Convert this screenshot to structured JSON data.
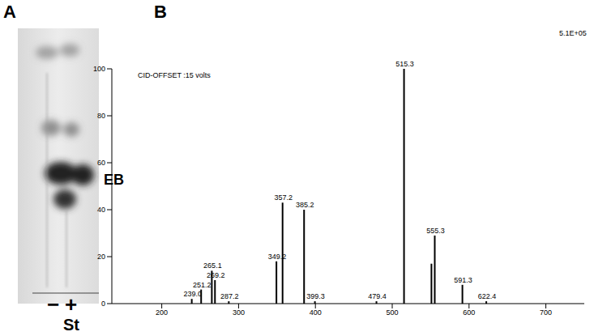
{
  "panel_labels": [
    "A",
    "B"
  ],
  "gel": {
    "band_label": "EB",
    "lane_labels": [
      "−",
      "+"
    ],
    "standard_label": "St"
  },
  "chart_data": {
    "type": "bar",
    "annotations": [
      "CID-OFFSET :15 volts",
      "5.1E+05"
    ],
    "x": [
      239.0,
      251.2,
      265.1,
      269.2,
      287.2,
      349.2,
      357.2,
      385.2,
      399.3,
      479.4,
      515.3,
      551.0,
      555.3,
      591.3,
      622.4
    ],
    "values": [
      2,
      6,
      14,
      10,
      1,
      18,
      43,
      40,
      1,
      1,
      100,
      17,
      29,
      8,
      1
    ],
    "labels": [
      "239.0",
      "251.2",
      "265.1",
      "269.2",
      "287.2",
      "349.2",
      "357.2",
      "385.2",
      "399.3",
      "479.4",
      "515.3",
      null,
      "555.3",
      "591.3",
      "622.4"
    ],
    "color": "#000000",
    "xlim": [
      135,
      750
    ],
    "xticks": [
      200,
      300,
      400,
      500,
      600,
      700
    ],
    "ylim": [
      0,
      100
    ],
    "yticks": [
      0,
      20,
      40,
      60,
      80,
      100
    ],
    "grid": false
  }
}
